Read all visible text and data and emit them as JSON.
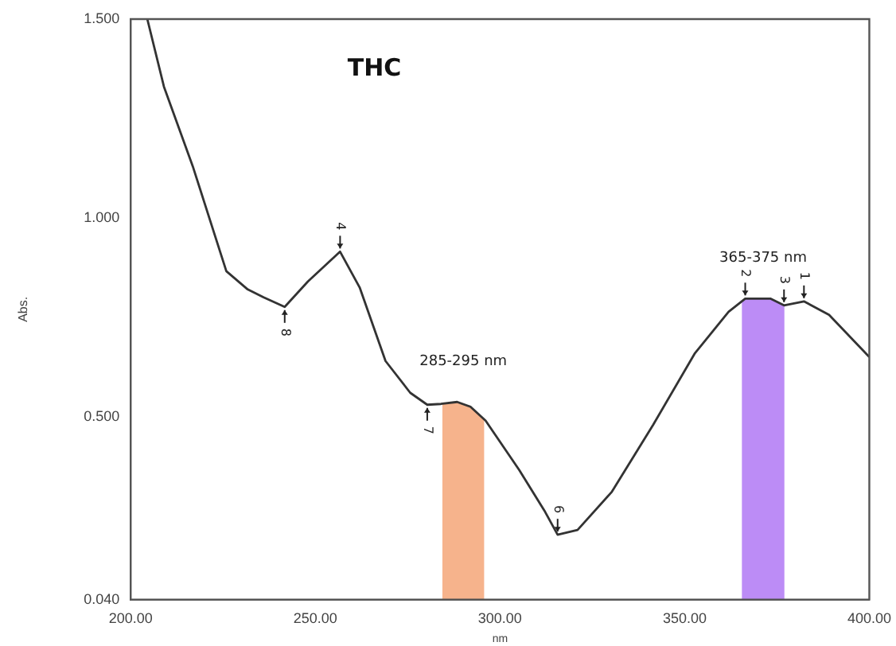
{
  "chart_data": {
    "type": "line",
    "title": "THC",
    "xlabel": "nm",
    "ylabel": "Abs.",
    "x": [
      204.5,
      209,
      216.8,
      225.9,
      231.7,
      236,
      241.7,
      248,
      256.7,
      262,
      269,
      275.7,
      280.3,
      284,
      288.4,
      292,
      296.1,
      305.2,
      312,
      315.6,
      321,
      330.2,
      341.5,
      352.8,
      361.9,
      366.4,
      373.2,
      376.9,
      382.3,
      389.1,
      400
    ],
    "series": [
      {
        "color": "#333333",
        "values": [
          1.5,
          1.33,
          1.13,
          0.866,
          0.82,
          0.8,
          0.776,
          0.84,
          0.915,
          0.825,
          0.64,
          0.56,
          0.53,
          0.532,
          0.537,
          0.525,
          0.49,
          0.366,
          0.264,
          0.203,
          0.215,
          0.31,
          0.48,
          0.66,
          0.764,
          0.797,
          0.797,
          0.78,
          0.79,
          0.756,
          0.65
        ]
      }
    ],
    "xlim": [
      200,
      400
    ],
    "xticks": [
      {
        "value": 200,
        "label": "200.00"
      },
      {
        "value": 250,
        "label": "250.00"
      },
      {
        "value": 300,
        "label": "300.00"
      },
      {
        "value": 350,
        "label": "350.00"
      },
      {
        "value": 400,
        "label": "400.00"
      }
    ],
    "ylim": [
      0.04,
      1.5
    ],
    "yticks": [
      {
        "value": 0.04,
        "label": "0.040"
      },
      {
        "value": 0.5,
        "label": "0.500"
      },
      {
        "value": 1.0,
        "label": "1.000"
      },
      {
        "value": 1.5,
        "label": "1.500"
      }
    ],
    "bands": [
      {
        "axis": "x",
        "from": 284.4,
        "to": 295.7,
        "label": "285-295 nm",
        "color": "#f08040"
      },
      {
        "axis": "x",
        "from": 365.5,
        "to": 377,
        "label": "365-375 nm",
        "color": "#9040f0"
      }
    ],
    "annotations": [
      {
        "text": "8",
        "x": 241.7,
        "y": 0.776
      },
      {
        "text": "4",
        "x": 256.7,
        "y": 0.915
      },
      {
        "text": "7",
        "x": 280.3,
        "y": 0.53
      },
      {
        "text": "6",
        "x": 315.6,
        "y": 0.203
      },
      {
        "text": "2",
        "x": 366.4,
        "y": 0.797
      },
      {
        "text": "3",
        "x": 376.9,
        "y": 0.78
      },
      {
        "text": "1",
        "x": 382.3,
        "y": 0.79
      }
    ],
    "grid": false,
    "legend": false,
    "marker": "none",
    "line_style": "solid"
  }
}
